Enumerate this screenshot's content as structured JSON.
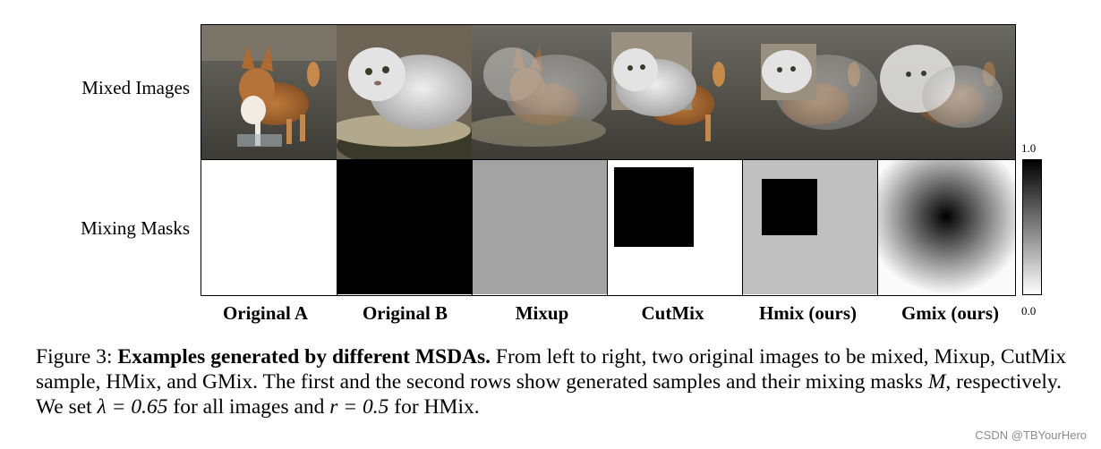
{
  "figure": {
    "row_labels": [
      "Mixed Images",
      "Mixing Masks"
    ],
    "columns": [
      "Original A",
      "Original B",
      "Mixup",
      "CutMix",
      "Hmix (ours)",
      "Gmix (ours)"
    ],
    "colorbar": {
      "max_label": "1.0",
      "min_label": "0.0"
    }
  },
  "caption": {
    "prefix": "Figure 3: ",
    "bold": "Examples generated by different MSDAs.",
    "text1": " From left to right, two original images to be mixed, Mixup, CutMix sample, HMix, and GMix. The first and the second rows show generated samples and their mixing masks ",
    "var_M": "M",
    "text2": ", respectively. We set ",
    "eq_lambda": "λ = 0.65",
    "text3": " for all images and ",
    "eq_r": "r = 0.5",
    "text4": " for HMix."
  },
  "watermark": "CSDN @TBYourHero"
}
